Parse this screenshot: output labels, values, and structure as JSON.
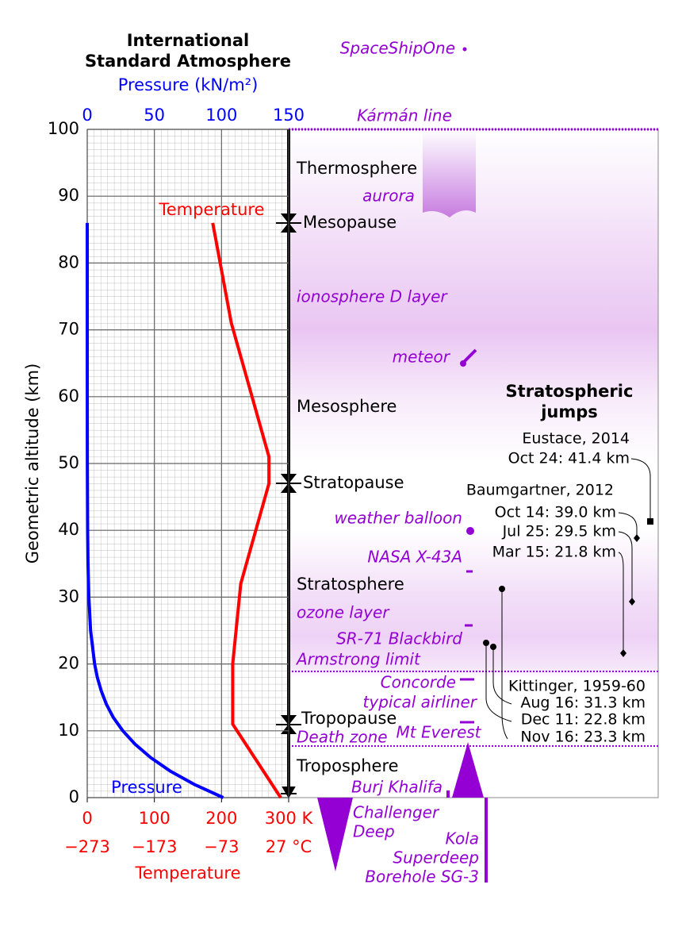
{
  "chart_data": {
    "type": "line",
    "title": [
      "International",
      "Standard Atmosphere"
    ],
    "xlabel": "Pressure (kN/m²)",
    "x2label": "Temperature",
    "ylabel": "Geometric altitude (km)",
    "xlim": [
      0,
      150
    ],
    "xticks": [
      0,
      50,
      100,
      150
    ],
    "x2lim": [
      0,
      300
    ],
    "x2ticks": [
      0,
      100,
      200,
      {
        "value": 300,
        "label": "300 K"
      }
    ],
    "celsius_labels": [
      "−273",
      "−173",
      "−73",
      "27 °C"
    ],
    "ylim": [
      0,
      100
    ],
    "yticks": [
      0,
      10,
      20,
      30,
      40,
      50,
      60,
      70,
      80,
      90,
      100
    ],
    "grid": true,
    "series": [
      {
        "name": "Pressure",
        "color": "#0000ff",
        "axis": "x",
        "x": [
          0,
          2,
          4,
          6,
          8,
          10,
          12,
          14,
          16,
          18,
          20,
          25,
          30,
          35,
          40,
          50,
          60,
          70,
          80,
          86
        ],
        "values": [
          101.3,
          79.5,
          61.6,
          47.2,
          35.6,
          26.5,
          19.4,
          14.2,
          10.4,
          7.5,
          5.5,
          2.5,
          1.2,
          0.57,
          0.29,
          0.08,
          0.02,
          0.005,
          0.001,
          0.0004
        ]
      },
      {
        "name": "Temperature",
        "color": "#ff0000",
        "axis": "x2",
        "x": [
          0,
          11,
          20,
          32,
          47,
          51,
          71,
          86
        ],
        "values": [
          288.15,
          216.65,
          216.65,
          228.65,
          270.65,
          270.65,
          214.65,
          186.9
        ]
      }
    ]
  },
  "layers": [
    "Thermosphere",
    "Mesosphere",
    "Stratosphere",
    "Troposphere"
  ],
  "pauses": [
    "Mesopause",
    "Stratopause",
    "Tropopause"
  ],
  "annotations": [
    "SpaceShipOne",
    "Kármán line",
    "aurora",
    "ionosphere D layer",
    "meteor",
    "weather balloon",
    "NASA X-43A",
    "ozone layer",
    "SR-71 Blackbird",
    "Armstrong limit",
    "Concorde",
    "typical airliner",
    "Mt Everest",
    "Death zone",
    "Burj Khalifa",
    [
      "Challenger",
      "Deep"
    ],
    [
      "Kola",
      "Superdeep",
      "Borehole SG-3"
    ]
  ],
  "jumps": {
    "title": [
      "Stratospheric",
      "jumps"
    ],
    "eustace": [
      "Eustace, 2014",
      "Oct 24: 41.4 km"
    ],
    "baumgartner": [
      "Baumgartner, 2012",
      "Oct 14: 39.0 km",
      "Jul 25: 29.5 km",
      "Mar 15: 21.8 km"
    ],
    "kittinger": [
      "Kittinger, 1959-60",
      "Aug 16: 31.3 km",
      "Dec 11: 22.8 km",
      "Nov 16: 23.3 km"
    ]
  }
}
